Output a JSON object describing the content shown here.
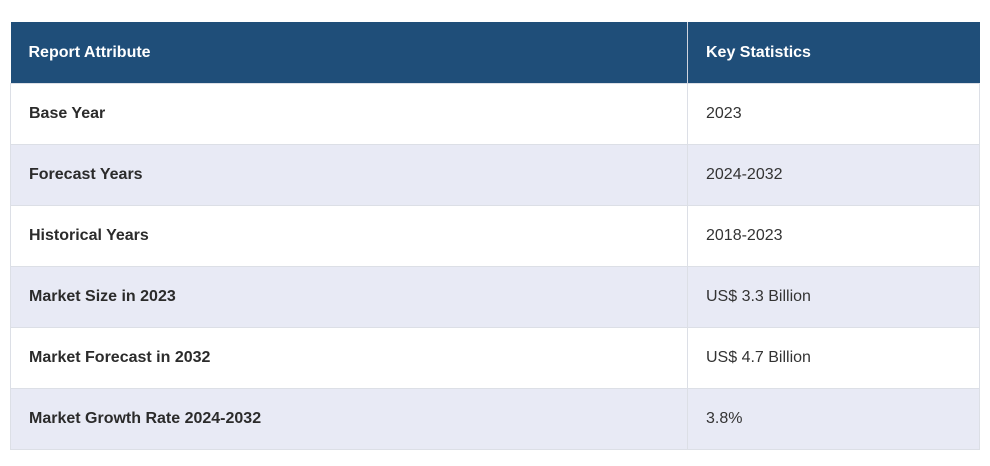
{
  "table": {
    "headers": [
      "Report Attribute",
      "Key Statistics"
    ],
    "rows": [
      {
        "attribute": "Base Year",
        "value": "2023"
      },
      {
        "attribute": "Forecast Years",
        "value": "2024-2032"
      },
      {
        "attribute": "Historical Years",
        "value": "2018-2023"
      },
      {
        "attribute": "Market Size in 2023",
        "value": "US$ 3.3 Billion"
      },
      {
        "attribute": "Market Forecast in 2032",
        "value": "US$ 4.7 Billion"
      },
      {
        "attribute": "Market Growth Rate 2024-2032",
        "value": "3.8%"
      }
    ],
    "colors": {
      "header_bg": "#1f4e79",
      "row_alt_bg": "#e8eaf5"
    }
  }
}
